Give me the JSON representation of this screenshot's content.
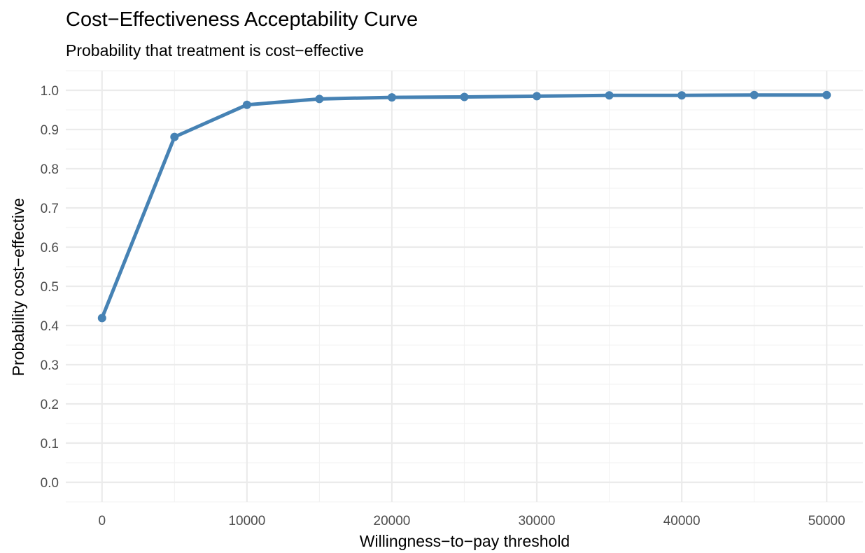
{
  "chart_data": {
    "type": "line",
    "title": "Cost−Effectiveness Acceptability Curve",
    "subtitle": "Probability that treatment is cost−effective",
    "xlabel": "Willingness−to−pay threshold",
    "ylabel": "Probability cost−effective",
    "x": [
      0,
      5000,
      10000,
      15000,
      20000,
      25000,
      30000,
      35000,
      40000,
      45000,
      50000
    ],
    "series": [
      {
        "values": [
          0.419,
          0.881,
          0.963,
          0.978,
          0.982,
          0.983,
          0.985,
          0.987,
          0.987,
          0.988,
          0.988
        ],
        "color": "#4682B4"
      }
    ],
    "xlim": [
      -2500,
      52500
    ],
    "ylim": [
      -0.05,
      1.05
    ],
    "xticks": [
      0,
      10000,
      20000,
      30000,
      40000,
      50000
    ],
    "xtick_labels": [
      "0",
      "10000",
      "20000",
      "30000",
      "40000",
      "50000"
    ],
    "yticks": [
      0.0,
      0.1,
      0.2,
      0.3,
      0.4,
      0.5,
      0.6,
      0.7,
      0.8,
      0.9,
      1.0
    ],
    "ytick_labels": [
      "0.0",
      "0.1",
      "0.2",
      "0.3",
      "0.4",
      "0.5",
      "0.6",
      "0.7",
      "0.8",
      "0.9",
      "1.0"
    ],
    "grid": true,
    "legend": "none"
  }
}
